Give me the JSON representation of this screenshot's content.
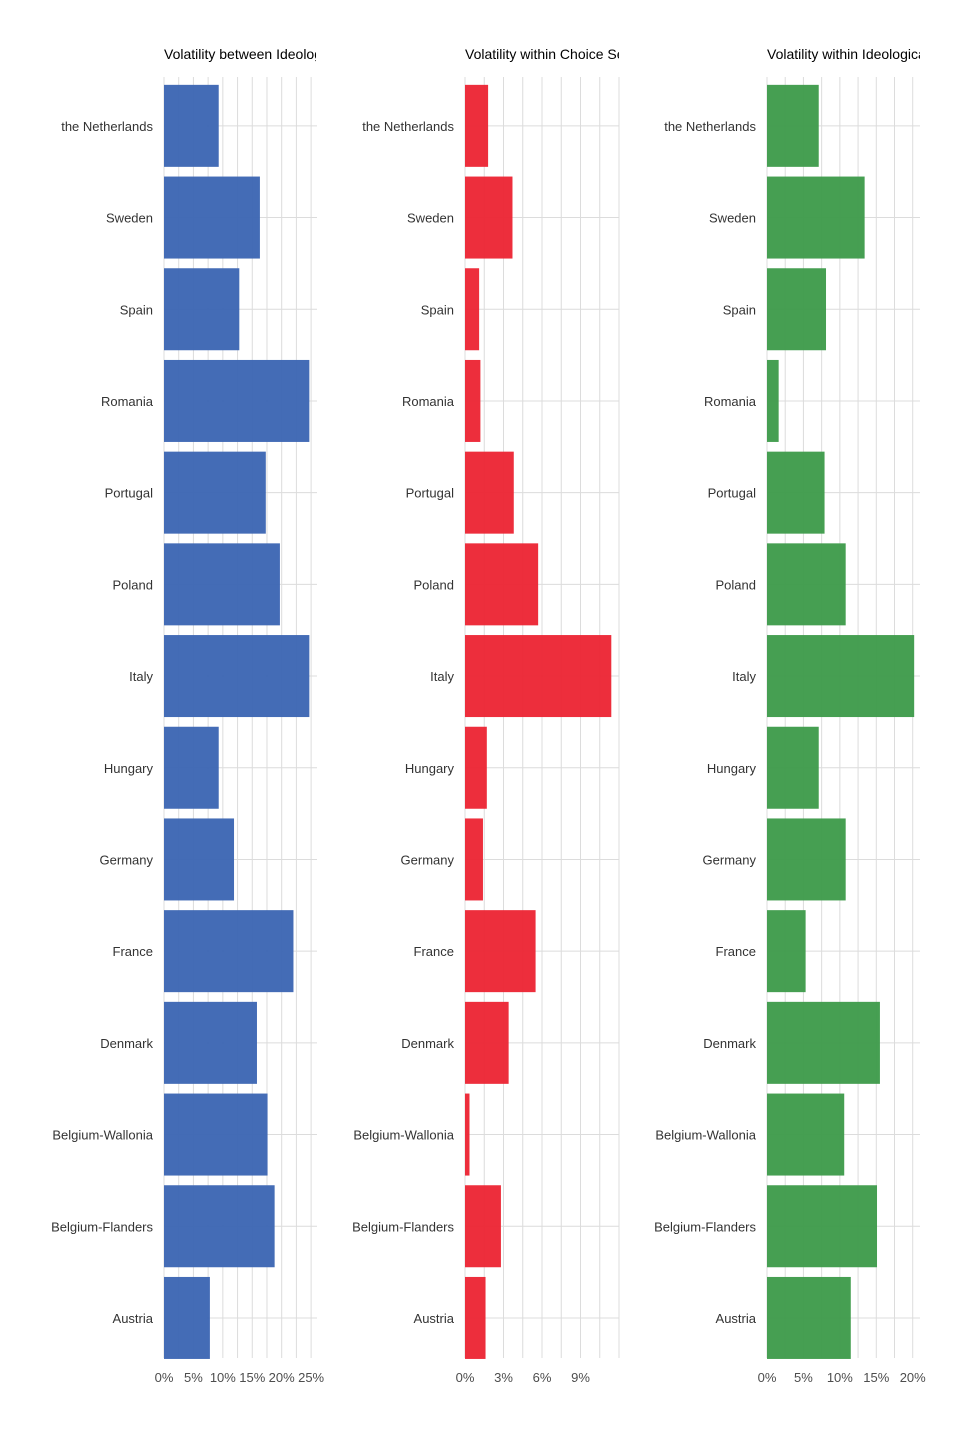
{
  "chart_data": [
    {
      "type": "bar",
      "orientation": "horizontal",
      "title": "Volatility between Ideologic",
      "color": "#3a64b2",
      "categories": [
        "the Netherlands",
        "Sweden",
        "Spain",
        "Romania",
        "Portugal",
        "Poland",
        "Italy",
        "Hungary",
        "Germany",
        "France",
        "Denmark",
        "Belgium-Wallonia",
        "Belgium-Flanders",
        "Austria"
      ],
      "values": [
        9.3,
        16.3,
        12.8,
        24.7,
        17.3,
        19.7,
        24.7,
        9.3,
        11.9,
        22.0,
        15.8,
        17.6,
        18.8,
        7.8
      ],
      "xlim": [
        0,
        26
      ],
      "xticks": [
        0,
        5,
        10,
        15,
        20,
        25
      ],
      "xtick_labels": [
        "0%",
        "5%",
        "10%",
        "15%",
        "20%",
        "25%"
      ],
      "grid": true
    },
    {
      "type": "bar",
      "orientation": "horizontal",
      "title": "Volatility within Choice Set",
      "color": "#ec2331",
      "categories": [
        "the Netherlands",
        "Sweden",
        "Spain",
        "Romania",
        "Portugal",
        "Poland",
        "Italy",
        "Hungary",
        "Germany",
        "France",
        "Denmark",
        "Belgium-Wallonia",
        "Belgium-Flanders",
        "Austria"
      ],
      "values": [
        1.8,
        3.7,
        1.1,
        1.2,
        3.8,
        5.7,
        11.4,
        1.7,
        1.4,
        5.5,
        3.4,
        0.35,
        2.8,
        1.6
      ],
      "xlim": [
        0,
        12
      ],
      "xticks": [
        0,
        3,
        6,
        9
      ],
      "xtick_labels": [
        "0%",
        "3%",
        "6%",
        "9%"
      ],
      "grid": true
    },
    {
      "type": "bar",
      "orientation": "horizontal",
      "title": "Volatility within Ideological",
      "color": "#3c9a49",
      "categories": [
        "the Netherlands",
        "Sweden",
        "Spain",
        "Romania",
        "Portugal",
        "Poland",
        "Italy",
        "Hungary",
        "Germany",
        "France",
        "Denmark",
        "Belgium-Wallonia",
        "Belgium-Flanders",
        "Austria"
      ],
      "values": [
        7.1,
        13.4,
        8.1,
        1.6,
        7.9,
        10.8,
        20.2,
        7.1,
        10.8,
        5.3,
        15.5,
        10.6,
        15.1,
        11.5
      ],
      "xlim": [
        0,
        21
      ],
      "xticks": [
        0,
        5,
        10,
        15,
        20
      ],
      "xtick_labels": [
        "0%",
        "5%",
        "10%",
        "15%",
        "20%"
      ],
      "grid": true
    }
  ]
}
